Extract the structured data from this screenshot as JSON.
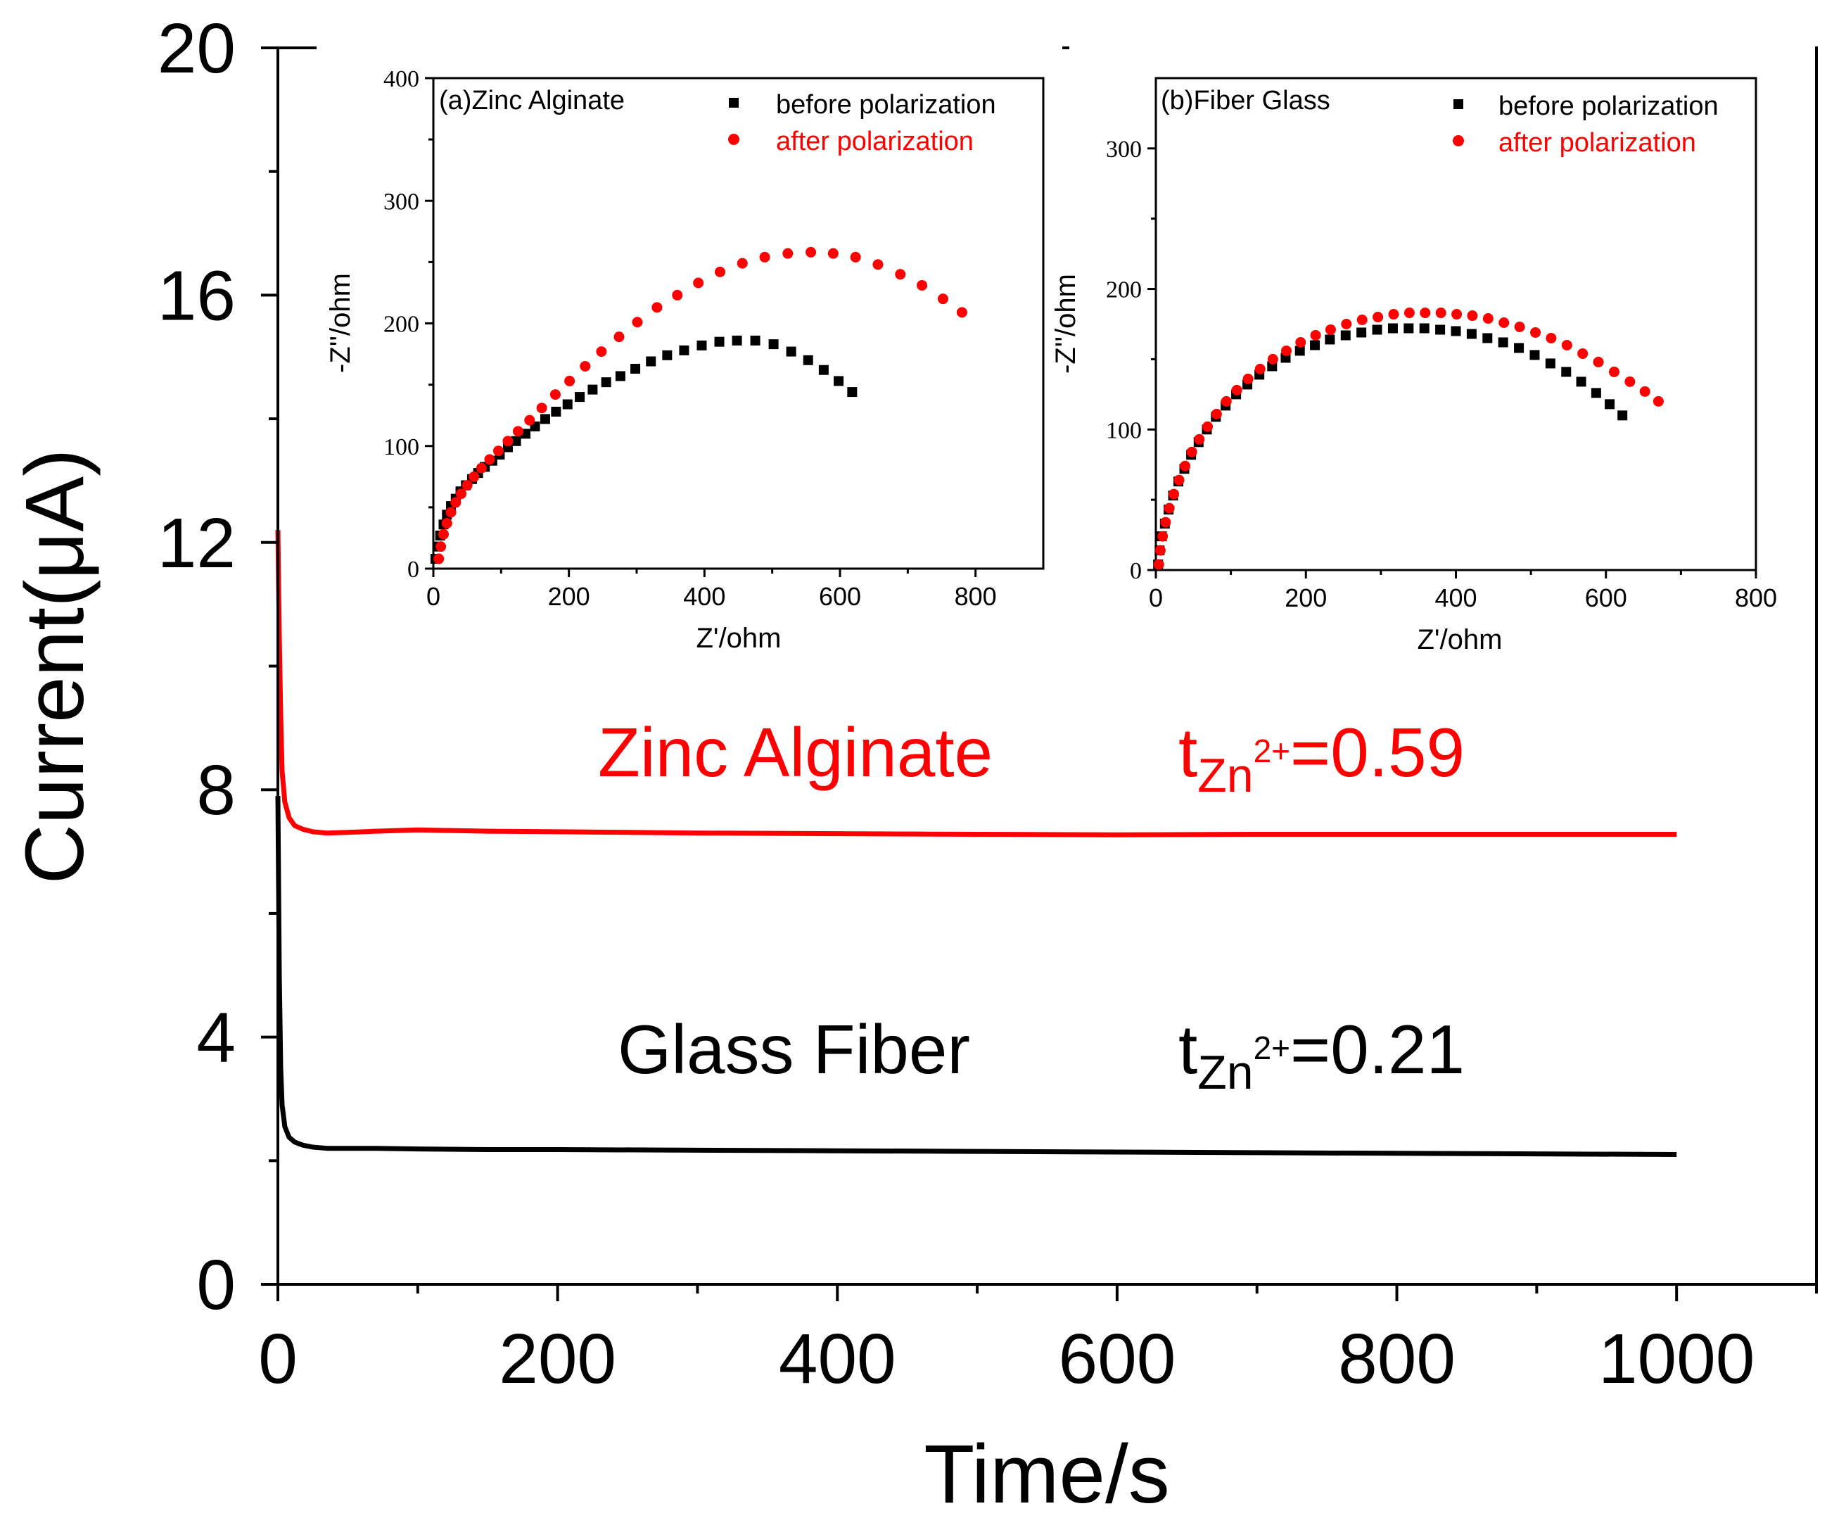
{
  "chart_data": [
    {
      "id": "main",
      "type": "line",
      "title": "",
      "xlabel": "Time/s",
      "ylabel": "Current(μA)",
      "xlim": [
        0,
        1100
      ],
      "ylim": [
        0,
        20
      ],
      "xticks": [
        0,
        200,
        400,
        600,
        800,
        1000
      ],
      "xticks_minor": [
        100,
        300,
        500,
        700,
        900,
        1100
      ],
      "yticks": [
        0,
        4,
        8,
        12,
        16,
        20
      ],
      "yticks_minor": [
        2,
        6,
        10,
        14,
        18
      ],
      "grid": false,
      "series": [
        {
          "name": "Zinc Alginate",
          "color": "#ff0000",
          "x": [
            0,
            1,
            2,
            3,
            5,
            8,
            12,
            18,
            25,
            35,
            50,
            70,
            100,
            150,
            200,
            250,
            300,
            400,
            500,
            600,
            700,
            800,
            900,
            1000
          ],
          "values": [
            12.2,
            10.5,
            9.2,
            8.3,
            7.8,
            7.55,
            7.42,
            7.36,
            7.32,
            7.3,
            7.31,
            7.33,
            7.35,
            7.33,
            7.32,
            7.31,
            7.3,
            7.29,
            7.28,
            7.27,
            7.28,
            7.28,
            7.28,
            7.28
          ]
        },
        {
          "name": "Glass Fiber",
          "color": "#000000",
          "x": [
            0,
            1,
            2,
            3,
            5,
            8,
            12,
            18,
            25,
            35,
            50,
            70,
            100,
            150,
            200,
            300,
            400,
            500,
            600,
            700,
            800,
            900,
            1000
          ],
          "values": [
            7.9,
            5.0,
            3.5,
            2.9,
            2.55,
            2.38,
            2.3,
            2.25,
            2.22,
            2.2,
            2.2,
            2.2,
            2.19,
            2.18,
            2.18,
            2.17,
            2.16,
            2.15,
            2.14,
            2.13,
            2.12,
            2.11,
            2.1
          ]
        }
      ],
      "annotations": [
        {
          "label": "Zinc Alginate",
          "t_base": "t",
          "t_sub": "Zn",
          "t_sup": "2+",
          "t_value": "=0.59",
          "color": "#ff0000"
        },
        {
          "label": "Glass Fiber",
          "t_base": "t",
          "t_sub": "Zn",
          "t_sup": "2+",
          "t_value": "=0.21",
          "color": "#000000"
        }
      ]
    },
    {
      "id": "inset-a",
      "type": "scatter",
      "panel_label": "(a)Zinc Alginate",
      "xlabel": "Z'/ohm",
      "ylabel": "-Z''/ohm",
      "xlim": [
        0,
        900
      ],
      "ylim": [
        0,
        400
      ],
      "xticks": [
        0,
        200,
        400,
        600,
        800
      ],
      "yticks": [
        0,
        100,
        200,
        300,
        400
      ],
      "legend_position": "top-right",
      "series": [
        {
          "name": "before polarization",
          "marker": "square",
          "color": "#000000",
          "x": [
            3,
            6,
            10,
            15,
            20,
            26,
            33,
            40,
            48,
            57,
            66,
            76,
            87,
            98,
            110,
            122,
            136,
            150,
            165,
            181,
            198,
            216,
            235,
            255,
            276,
            298,
            321,
            345,
            370,
            396,
            422,
            448,
            475,
            502,
            528,
            553,
            576,
            598,
            618
          ],
          "values": [
            8,
            18,
            27,
            36,
            44,
            51,
            57,
            63,
            68,
            73,
            78,
            83,
            88,
            93,
            99,
            104,
            110,
            116,
            122,
            128,
            134,
            140,
            146,
            152,
            157,
            163,
            169,
            174,
            178,
            182,
            185,
            186,
            186,
            183,
            177,
            170,
            162,
            153,
            144
          ]
        },
        {
          "name": "after polarization",
          "marker": "circle",
          "color": "#ff0000",
          "x": [
            8,
            11,
            15,
            20,
            26,
            33,
            41,
            50,
            60,
            71,
            83,
            96,
            110,
            125,
            142,
            160,
            180,
            201,
            224,
            248,
            274,
            301,
            330,
            360,
            391,
            423,
            456,
            489,
            523,
            557,
            590,
            623,
            656,
            689,
            721,
            752,
            780
          ],
          "values": [
            8,
            18,
            28,
            37,
            46,
            54,
            61,
            68,
            75,
            82,
            89,
            96,
            104,
            112,
            121,
            131,
            142,
            153,
            165,
            177,
            189,
            201,
            213,
            223,
            233,
            242,
            249,
            254,
            257,
            258,
            257,
            254,
            248,
            240,
            231,
            220,
            209
          ]
        }
      ]
    },
    {
      "id": "inset-b",
      "type": "scatter",
      "panel_label": "(b)Fiber Glass",
      "xlabel": "Z'/ohm",
      "ylabel": "-Z''/ohm",
      "xlim": [
        0,
        800
      ],
      "ylim": [
        0,
        350
      ],
      "xticks": [
        0,
        200,
        400,
        600,
        800
      ],
      "yticks": [
        0,
        100,
        200,
        300
      ],
      "legend_position": "top-right",
      "series": [
        {
          "name": "before polarization",
          "marker": "square",
          "color": "#000000",
          "x": [
            3,
            5,
            8,
            12,
            17,
            23,
            30,
            38,
            47,
            57,
            68,
            80,
            93,
            107,
            122,
            138,
            155,
            173,
            192,
            212,
            232,
            253,
            274,
            295,
            316,
            337,
            358,
            379,
            400,
            421,
            442,
            463,
            484,
            505,
            526,
            547,
            567,
            587,
            605,
            622
          ],
          "values": [
            4,
            14,
            24,
            33,
            43,
            53,
            63,
            72,
            82,
            91,
            100,
            109,
            117,
            125,
            132,
            139,
            145,
            151,
            156,
            160,
            164,
            167,
            169,
            171,
            172,
            172,
            172,
            171,
            170,
            168,
            165,
            162,
            158,
            153,
            147,
            141,
            134,
            126,
            118,
            110
          ]
        },
        {
          "name": "after polarization",
          "marker": "circle",
          "color": "#ff0000",
          "x": [
            4,
            6,
            9,
            13,
            18,
            24,
            31,
            39,
            48,
            58,
            69,
            81,
            94,
            108,
            123,
            139,
            156,
            174,
            193,
            213,
            233,
            254,
            275,
            296,
            317,
            338,
            359,
            380,
            401,
            422,
            443,
            464,
            485,
            506,
            527,
            548,
            569,
            590,
            611,
            632,
            652,
            670
          ],
          "values": [
            4,
            14,
            24,
            34,
            44,
            54,
            64,
            74,
            84,
            93,
            102,
            111,
            120,
            128,
            136,
            143,
            150,
            156,
            162,
            167,
            171,
            175,
            178,
            180,
            182,
            183,
            183,
            183,
            182,
            181,
            179,
            176,
            173,
            169,
            165,
            160,
            154,
            148,
            141,
            134,
            127,
            120
          ]
        }
      ]
    }
  ]
}
